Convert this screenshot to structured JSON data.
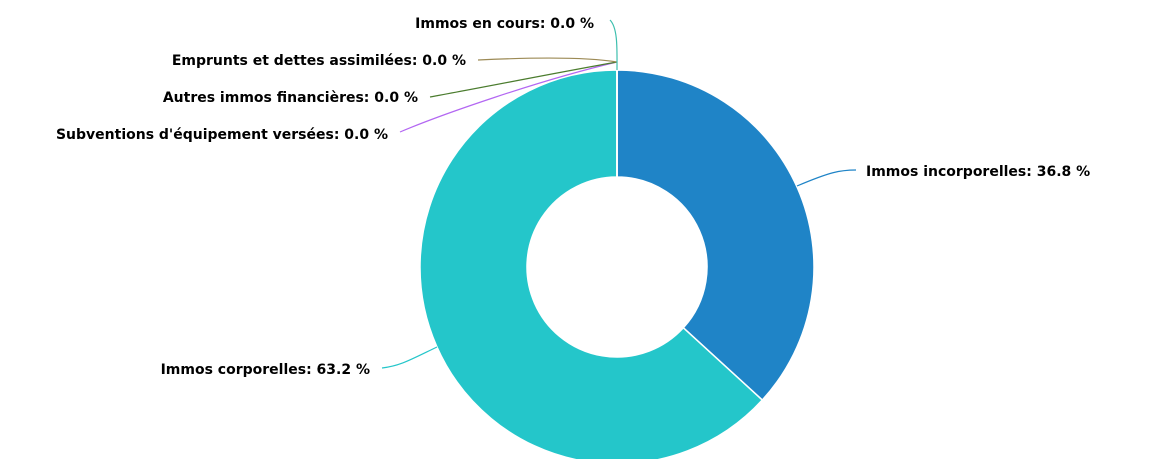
{
  "chart_data": {
    "type": "pie",
    "donut": true,
    "values": [
      36.8,
      63.2,
      0.0,
      0.0,
      0.0,
      0.0
    ],
    "value_labels": [
      "Immos incorporelles: 36.8 %",
      "Immos corporelles: 63.2 %",
      "Subventions d'équipement versées: 0.0 %",
      "Autres immos financières: 0.0 %",
      "Emprunts et dettes assimilées: 0.0 %",
      "Immos en cours: 0.0 %"
    ],
    "colors": [
      "#1f84c7",
      "#24c6ca",
      "#b367f2",
      "#4b7c2e",
      "#9c8a55",
      "#3dbfae"
    ]
  }
}
